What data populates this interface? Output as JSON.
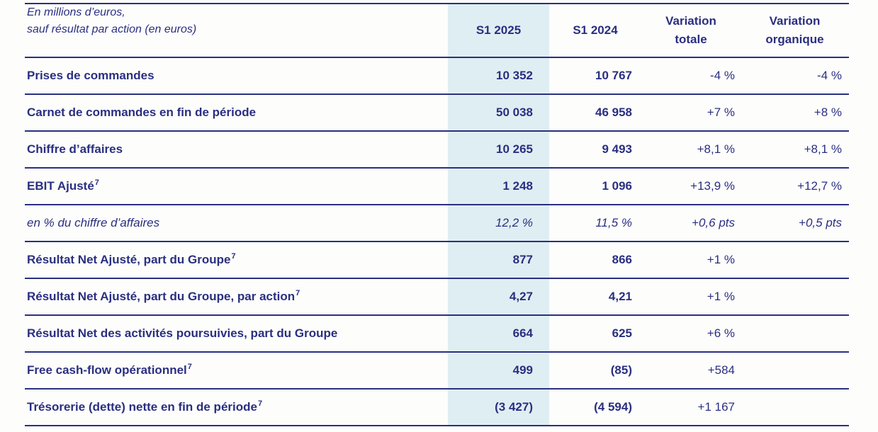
{
  "colors": {
    "navy_text": "#2a2f80",
    "rule_lines": "#2a2f80",
    "highlight_column": "#dfeef2",
    "background": "#fdfdfc"
  },
  "table": {
    "unit_note": {
      "line1": "En millions d’euros,",
      "line2": "sauf résultat par action (en euros)"
    },
    "columns": {
      "s1_2025": {
        "label": "S1 2025",
        "highlighted": true
      },
      "s1_2024": {
        "label": "S1 2024"
      },
      "var_totale": {
        "line1": "Variation",
        "line2": "totale"
      },
      "var_organique": {
        "line1": "Variation",
        "line2": "organique"
      }
    },
    "rows": [
      {
        "label": "Prises de commandes",
        "sup": "",
        "style": "bold",
        "s1_2025": "10 352",
        "s1_2024": "10 767",
        "var_totale": "-4 %",
        "var_organique": "-4 %"
      },
      {
        "label": "Carnet de commandes en fin de période",
        "sup": "",
        "style": "bold",
        "s1_2025": "50 038",
        "s1_2024": "46 958",
        "var_totale": "+7 %",
        "var_organique": "+8 %"
      },
      {
        "label": "Chiffre d’affaires",
        "sup": "",
        "style": "bold",
        "s1_2025": "10 265",
        "s1_2024": "9 493",
        "var_totale": "+8,1 %",
        "var_organique": "+8,1 %"
      },
      {
        "label": "EBIT Ajusté",
        "sup": "7",
        "style": "bold",
        "s1_2025": "1 248",
        "s1_2024": "1 096",
        "var_totale": "+13,9 %",
        "var_organique": "+12,7 %"
      },
      {
        "label": "en % du chiffre d’affaires",
        "sup": "",
        "style": "italic",
        "s1_2025": "12,2 %",
        "s1_2024": "11,5 %",
        "var_totale": "+0,6 pts",
        "var_organique": "+0,5 pts"
      },
      {
        "label": "Résultat Net Ajusté, part du Groupe",
        "sup": "7",
        "style": "bold",
        "s1_2025": "877",
        "s1_2024": "866",
        "var_totale": "+1 %",
        "var_organique": ""
      },
      {
        "label": "Résultat Net Ajusté, part du Groupe, par action",
        "sup": "7",
        "style": "bold",
        "s1_2025": "4,27",
        "s1_2024": "4,21",
        "var_totale": "+1 %",
        "var_organique": ""
      },
      {
        "label": "Résultat Net des activités poursuivies, part du Groupe",
        "sup": "",
        "style": "bold",
        "s1_2025": "664",
        "s1_2024": "625",
        "var_totale": "+6 %",
        "var_organique": ""
      },
      {
        "label": "Free cash-flow opérationnel",
        "sup": "7",
        "style": "bold",
        "s1_2025": "499",
        "s1_2024": "(85)",
        "var_totale": "+584",
        "var_organique": ""
      },
      {
        "label": "Trésorerie (dette) nette en fin de période",
        "sup": "7",
        "style": "bold",
        "s1_2025": "(3 427)",
        "s1_2024": "(4 594)",
        "var_totale": "+1 167",
        "var_organique": ""
      }
    ]
  }
}
